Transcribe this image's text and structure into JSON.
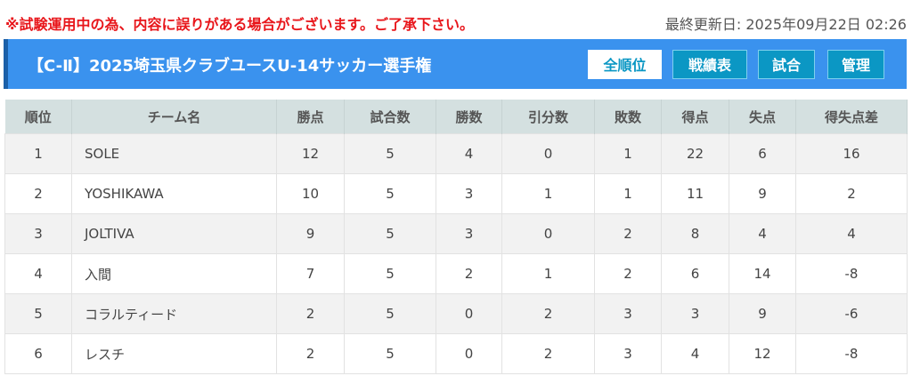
{
  "notice": "※試験運用中の為、内容に誤りがある場合がございます。ご了承下さい。",
  "updated": "最終更新日: 2025年09月22日 02:26",
  "title": "【C-Ⅱ】2025埼玉県クラブユースU-14サッカー選手権",
  "nav": [
    "全順位",
    "戦績表",
    "試合",
    "管理"
  ],
  "colors": {
    "accent": "#3a92ee",
    "button": "#0b97c4",
    "notice": "#e8161b"
  },
  "columns": [
    "順位",
    "チーム名",
    "勝点",
    "試合数",
    "勝数",
    "引分数",
    "敗数",
    "得点",
    "失点",
    "得失点差"
  ],
  "rows": [
    [
      "1",
      "SOLE",
      "12",
      "5",
      "4",
      "0",
      "1",
      "22",
      "6",
      "16"
    ],
    [
      "2",
      "YOSHIKAWA",
      "10",
      "5",
      "3",
      "1",
      "1",
      "11",
      "9",
      "2"
    ],
    [
      "3",
      "JOLTIVA",
      "9",
      "5",
      "3",
      "0",
      "2",
      "8",
      "4",
      "4"
    ],
    [
      "4",
      "入間",
      "7",
      "5",
      "2",
      "1",
      "2",
      "6",
      "14",
      "-8"
    ],
    [
      "5",
      "コラルティード",
      "2",
      "5",
      "0",
      "2",
      "3",
      "3",
      "9",
      "-6"
    ],
    [
      "6",
      "レスチ",
      "2",
      "5",
      "0",
      "2",
      "3",
      "4",
      "12",
      "-8"
    ]
  ]
}
